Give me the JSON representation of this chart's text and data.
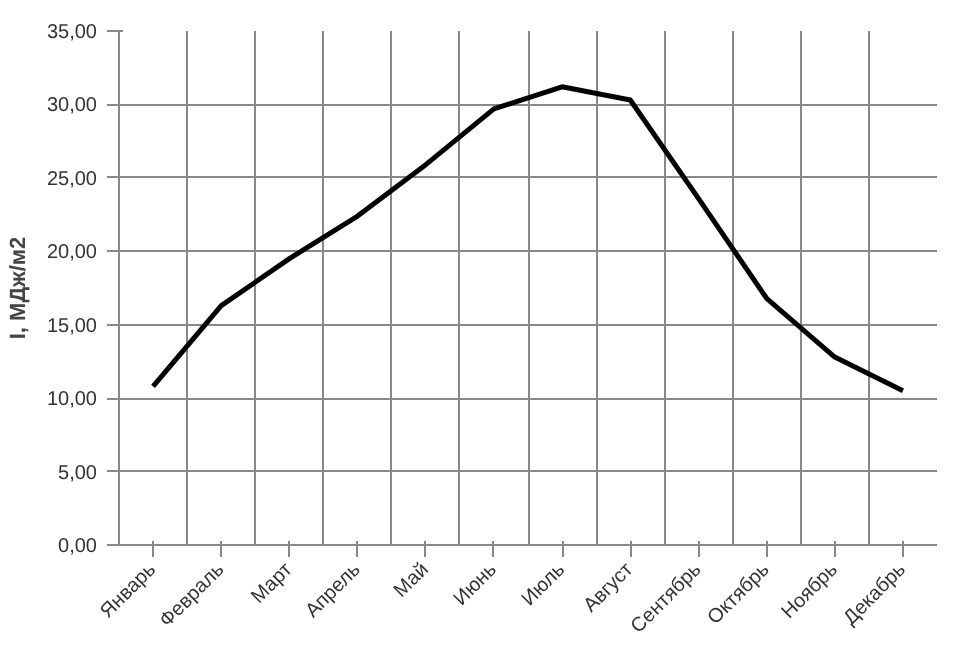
{
  "chart_data": {
    "type": "line",
    "ylabel": "I, МДж/м2",
    "categories": [
      "Январь",
      "Февраль",
      "Март",
      "Апрель",
      "Май",
      "Июнь",
      "Июль",
      "Август",
      "Сентябрь",
      "Октябрь",
      "Ноябрь",
      "Декабрь"
    ],
    "values": [
      10.8,
      16.3,
      19.5,
      22.4,
      25.9,
      29.7,
      31.2,
      30.3,
      23.6,
      16.8,
      12.8,
      10.5
    ],
    "color": "#000000",
    "ylim": [
      0,
      35
    ],
    "yticks": [
      {
        "value": 0,
        "label": "0,00"
      },
      {
        "value": 5,
        "label": "5,00"
      },
      {
        "value": 10,
        "label": "10,00"
      },
      {
        "value": 15,
        "label": "15,00"
      },
      {
        "value": 20,
        "label": "20,00"
      },
      {
        "value": 25,
        "label": "25,00"
      },
      {
        "value": 30,
        "label": "30,00"
      },
      {
        "value": 35,
        "label": "35,00"
      }
    ],
    "grid": true,
    "marker": "none",
    "line_style": "solid"
  }
}
